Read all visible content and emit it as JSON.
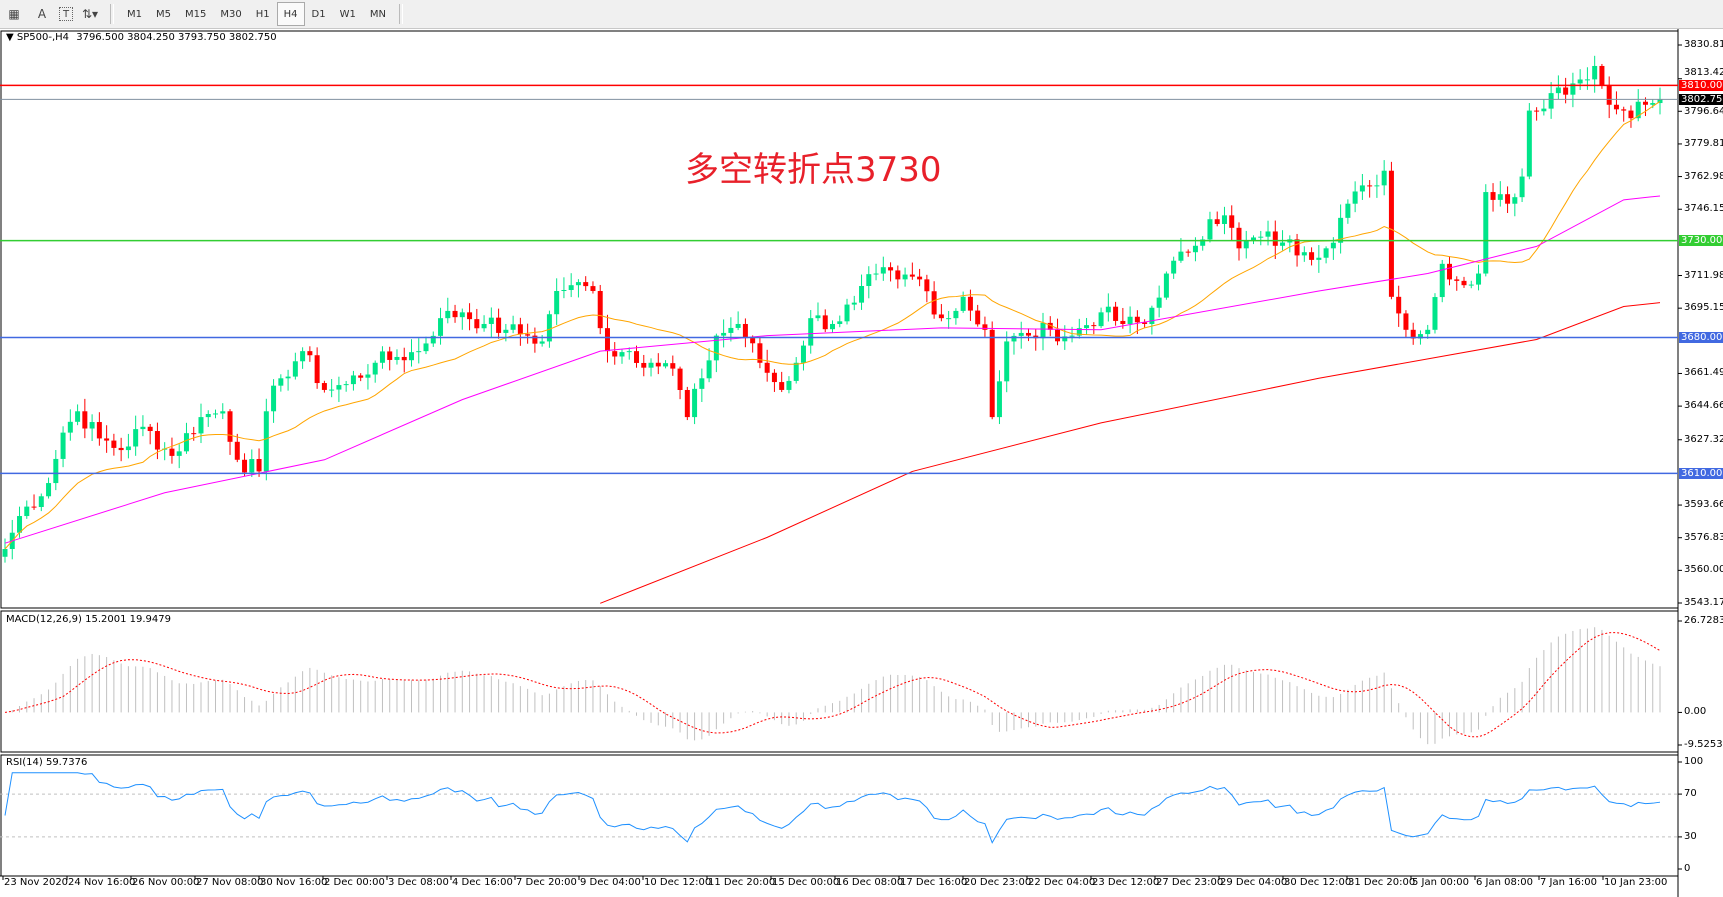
{
  "toolbar": {
    "icons": [
      "fibonacci-fan-icon",
      "text-icon",
      "text-label-icon",
      "arrows-icon",
      "dropdown-icon"
    ],
    "text_icon_glyph": "A",
    "label_icon_glyph": "T",
    "timeframes": [
      "M1",
      "M5",
      "M15",
      "M30",
      "H1",
      "H4",
      "D1",
      "W1",
      "MN"
    ],
    "active_timeframe": "H4"
  },
  "chart": {
    "symbol": "SP500-,H4",
    "ohlc": "3796.500 3804.250 3793.750 3802.750",
    "annotation": "多空转折点3730",
    "price_ticks": [
      "3830.810",
      "3813.420",
      "3796.640",
      "3779.810",
      "3762.980",
      "3746.150",
      "3711.980",
      "3695.150",
      "3661.490",
      "3644.660",
      "3627.320",
      "3593.660",
      "3576.830",
      "3560.000",
      "3543.170"
    ],
    "price_range": [
      3543.17,
      3830.81
    ],
    "current_price": {
      "value": 3802.75,
      "label": "3802.750",
      "color": "#000000"
    },
    "levels": [
      {
        "value": 3810,
        "label": "3810.000",
        "color": "#ff0000"
      },
      {
        "value": 3730,
        "label": "3730.000",
        "color": "#32cd32"
      },
      {
        "value": 3680,
        "label": "3680.000",
        "color": "#4169e1"
      },
      {
        "value": 3610,
        "label": "3610.000",
        "color": "#4169e1"
      }
    ],
    "colors": {
      "bull": "#00e58a",
      "bear": "#ff0000",
      "ma_fast": "#ffa500",
      "ma_mid": "#ff00ff",
      "ma_slow": "#ff0000"
    },
    "closes": [
      [
        1,
        3571
      ],
      [
        3,
        3588
      ],
      [
        7,
        3605
      ],
      [
        9,
        3631
      ],
      [
        11,
        3642
      ],
      [
        14,
        3628
      ],
      [
        17,
        3622
      ],
      [
        20,
        3634
      ],
      [
        24,
        3619
      ],
      [
        28,
        3639
      ],
      [
        31,
        3642
      ],
      [
        33,
        3617
      ],
      [
        36,
        3611
      ],
      [
        37,
        3642
      ],
      [
        39,
        3659
      ],
      [
        42,
        3673
      ],
      [
        45,
        3653
      ],
      [
        48,
        3656
      ],
      [
        52,
        3667
      ],
      [
        55,
        3670
      ],
      [
        58,
        3673
      ],
      [
        61,
        3690
      ],
      [
        64,
        3693
      ],
      [
        67,
        3687
      ],
      [
        70,
        3684
      ],
      [
        73,
        3681
      ],
      [
        75,
        3678
      ],
      [
        77,
        3704
      ],
      [
        79,
        3707
      ],
      [
        82,
        3704
      ],
      [
        84,
        3673
      ],
      [
        87,
        3673
      ],
      [
        90,
        3667
      ],
      [
        93,
        3664
      ],
      [
        95,
        3639
      ],
      [
        97,
        3659
      ],
      [
        99,
        3681
      ],
      [
        102,
        3687
      ],
      [
        105,
        3667
      ],
      [
        108,
        3653
      ],
      [
        110,
        3667
      ],
      [
        112,
        3690
      ],
      [
        115,
        3687
      ],
      [
        118,
        3698
      ],
      [
        121,
        3713
      ],
      [
        124,
        3710
      ],
      [
        127,
        3710
      ],
      [
        130,
        3690
      ],
      [
        131,
        3690
      ],
      [
        133,
        3701
      ],
      [
        136,
        3684
      ],
      [
        137,
        3639
      ],
      [
        139,
        3678
      ],
      [
        142,
        3681
      ],
      [
        145,
        3684
      ],
      [
        148,
        3681
      ],
      [
        152,
        3693
      ],
      [
        155,
        3687
      ],
      [
        158,
        3687
      ],
      [
        161,
        3713
      ],
      [
        164,
        3724
      ],
      [
        167,
        3741
      ],
      [
        169,
        3743
      ],
      [
        171,
        3726
      ],
      [
        174,
        3732
      ],
      [
        177,
        3729
      ],
      [
        180,
        3724
      ],
      [
        183,
        3726
      ],
      [
        186,
        3749
      ],
      [
        189,
        3758
      ],
      [
        191,
        3766
      ],
      [
        192,
        3701
      ],
      [
        194,
        3684
      ],
      [
        197,
        3684
      ],
      [
        199,
        3718
      ],
      [
        202,
        3707
      ],
      [
        204,
        3713
      ],
      [
        205,
        3755
      ],
      [
        208,
        3749
      ],
      [
        210,
        3763
      ],
      [
        211,
        3797
      ],
      [
        214,
        3806
      ],
      [
        217,
        3811
      ],
      [
        220,
        3820
      ],
      [
        222,
        3800
      ],
      [
        224,
        3797
      ],
      [
        227,
        3800
      ],
      [
        229,
        3802.75
      ]
    ],
    "ma_mid": [
      [
        1,
        3574
      ],
      [
        23,
        3600
      ],
      [
        45,
        3617
      ],
      [
        64,
        3648
      ],
      [
        83,
        3673
      ],
      [
        106,
        3681
      ],
      [
        130,
        3685
      ],
      [
        152,
        3684
      ],
      [
        182,
        3704
      ],
      [
        197,
        3713
      ],
      [
        212,
        3727
      ],
      [
        224,
        3751
      ],
      [
        229,
        3753
      ]
    ],
    "ma_slow": [
      [
        83,
        3543
      ],
      [
        106,
        3577
      ],
      [
        126,
        3611
      ],
      [
        152,
        3636
      ],
      [
        182,
        3659
      ],
      [
        212,
        3679
      ],
      [
        224,
        3696
      ],
      [
        229,
        3698
      ]
    ]
  },
  "macd": {
    "label": "MACD(12,26,9) 15.2001 19.9479",
    "axis": [
      "26.7283",
      "0.00",
      "-9.5253"
    ],
    "range": [
      -9.5253,
      26.7283
    ]
  },
  "rsi": {
    "label": "RSI(14) 59.7376",
    "axis": [
      "100",
      "70",
      "30",
      "0"
    ],
    "levels": [
      70,
      30
    ],
    "color": "#1e90ff"
  },
  "time_axis": [
    "23 Nov 2020",
    "24 Nov 16:00",
    "26 Nov 00:00",
    "27 Nov 08:00",
    "30 Nov 16:00",
    "2 Dec 00:00",
    "3 Dec 08:00",
    "4 Dec 16:00",
    "7 Dec 20:00",
    "9 Dec 04:00",
    "10 Dec 12:00",
    "11 Dec 20:00",
    "15 Dec 00:00",
    "16 Dec 08:00",
    "17 Dec 16:00",
    "20 Dec 23:00",
    "22 Dec 04:00",
    "23 Dec 12:00",
    "27 Dec 23:00",
    "29 Dec 04:00",
    "30 Dec 12:00",
    "31 Dec 20:00",
    "5 Jan 00:00",
    "6 Jan 08:00",
    "7 Jan 16:00",
    "10 Jan 23:00"
  ]
}
